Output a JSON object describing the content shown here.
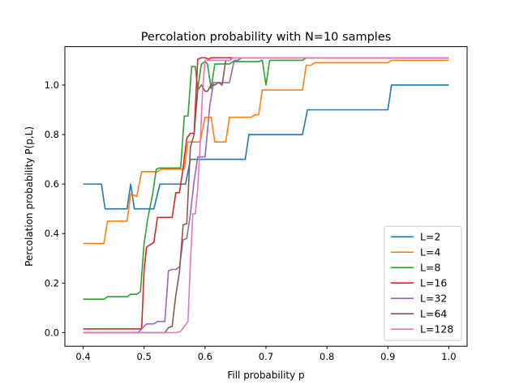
{
  "chart_data": {
    "type": "line",
    "title": "Percolation probability with N=10 samples",
    "xlabel": "Fill probability p",
    "ylabel": "Percolation probability P(p,L)",
    "xlim": [
      0.37,
      1.03
    ],
    "ylim": [
      -0.055,
      1.155
    ],
    "xticks": [
      "0.4",
      "0.5",
      "0.6",
      "0.7",
      "0.8",
      "0.9",
      "1.0"
    ],
    "yticks": [
      "0.0",
      "0.2",
      "0.4",
      "0.6",
      "0.8",
      "1.0"
    ],
    "legend_position": "lower-right",
    "grid": false,
    "series": [
      {
        "name": "L=2",
        "color": "#1f77b4",
        "x": [
          0.4,
          0.43,
          0.436,
          0.472,
          0.478,
          0.484,
          0.516,
          0.526,
          0.568,
          0.576,
          0.666,
          0.672,
          0.76,
          0.768,
          0.9,
          0.906,
          1.0
        ],
        "y": [
          0.6,
          0.6,
          0.5,
          0.5,
          0.6,
          0.5,
          0.5,
          0.6,
          0.6,
          0.7,
          0.7,
          0.8,
          0.8,
          0.9,
          0.9,
          1.0,
          1.0
        ]
      },
      {
        "name": "L=4",
        "color": "#ff7f0e",
        "x": [
          0.4,
          0.434,
          0.44,
          0.472,
          0.478,
          0.488,
          0.496,
          0.522,
          0.528,
          0.566,
          0.572,
          0.592,
          0.6,
          0.61,
          0.616,
          0.634,
          0.64,
          0.676,
          0.682,
          0.688,
          0.694,
          0.76,
          0.766,
          0.774,
          0.78,
          0.9,
          0.906,
          1.0
        ],
        "y": [
          0.36,
          0.36,
          0.45,
          0.45,
          0.56,
          0.55,
          0.65,
          0.65,
          0.66,
          0.66,
          0.77,
          0.77,
          0.87,
          0.87,
          0.77,
          0.77,
          0.87,
          0.87,
          0.88,
          0.88,
          0.98,
          0.98,
          1.08,
          1.08,
          1.09,
          1.09,
          1.1,
          1.1
        ]
      },
      {
        "name": "L=8",
        "color": "#2ca02c",
        "x": [
          0.4,
          0.434,
          0.44,
          0.472,
          0.478,
          0.488,
          0.494,
          0.5,
          0.506,
          0.514,
          0.52,
          0.526,
          0.56,
          0.566,
          0.572,
          0.578,
          0.584,
          0.588,
          0.594,
          0.6,
          0.604,
          0.61,
          0.616,
          0.622,
          0.64,
          0.646,
          0.688,
          0.694,
          0.7,
          0.706,
          0.76,
          0.766,
          1.0
        ],
        "y": [
          0.135,
          0.135,
          0.145,
          0.145,
          0.155,
          0.155,
          0.165,
          0.36,
          0.46,
          0.56,
          0.66,
          0.665,
          0.665,
          0.875,
          0.875,
          1.075,
          1.075,
          0.985,
          1.085,
          1.095,
          1.085,
          0.985,
          1.085,
          1.085,
          1.085,
          1.095,
          1.095,
          1.1,
          1.0,
          1.1,
          1.1,
          1.11,
          1.11
        ]
      },
      {
        "name": "L=16",
        "color": "#d62728",
        "x": [
          0.4,
          0.496,
          0.5,
          0.504,
          0.51,
          0.516,
          0.522,
          0.528,
          0.546,
          0.552,
          0.558,
          0.564,
          0.57,
          0.576,
          0.582,
          0.588,
          0.594,
          0.6,
          0.606,
          0.61,
          0.616,
          0.646,
          0.652,
          0.7,
          1.0
        ],
        "y": [
          0.015,
          0.015,
          0.255,
          0.345,
          0.355,
          0.365,
          0.465,
          0.465,
          0.465,
          0.565,
          0.565,
          0.665,
          0.785,
          0.805,
          0.805,
          1.105,
          1.11,
          1.11,
          1.105,
          1.11,
          1.11,
          1.11,
          1.11,
          1.11,
          1.11
        ]
      },
      {
        "name": "L=32",
        "color": "#9467bd",
        "x": [
          0.4,
          0.49,
          0.496,
          0.504,
          0.51,
          0.516,
          0.522,
          0.528,
          0.534,
          0.54,
          0.546,
          0.552,
          0.558,
          0.564,
          0.57,
          0.576,
          0.582,
          0.588,
          0.594,
          0.6,
          0.608,
          0.614,
          0.62,
          0.626,
          0.632,
          0.64,
          0.648,
          0.654,
          0.66,
          0.666,
          1.0
        ],
        "y": [
          0.0,
          0.0,
          0.015,
          0.035,
          0.035,
          0.035,
          0.045,
          0.045,
          0.045,
          0.25,
          0.255,
          0.255,
          0.265,
          0.375,
          0.38,
          0.48,
          0.61,
          0.71,
          0.71,
          0.71,
          0.92,
          1.01,
          1.01,
          1.01,
          1.01,
          1.01,
          1.1,
          1.1,
          1.11,
          1.11,
          1.11
        ]
      },
      {
        "name": "L=64",
        "color": "#8c564b",
        "x": [
          0.4,
          0.534,
          0.54,
          0.546,
          0.552,
          0.558,
          0.564,
          0.57,
          0.576,
          0.582,
          0.588,
          0.594,
          0.6,
          0.604,
          0.61,
          0.616,
          0.622,
          0.628,
          0.634,
          0.64,
          0.646,
          0.652,
          1.0
        ],
        "y": [
          0.0,
          0.0,
          0.02,
          0.025,
          0.15,
          0.245,
          0.435,
          0.44,
          0.75,
          0.8,
          0.98,
          1.0,
          0.975,
          0.975,
          1.0,
          1.0,
          1.01,
          1.0,
          1.1,
          1.1,
          1.11,
          1.11,
          1.11
        ]
      },
      {
        "name": "L=128",
        "color": "#e377c2",
        "x": [
          0.4,
          0.554,
          0.56,
          0.566,
          0.572,
          0.576,
          0.58,
          0.584,
          0.588,
          0.592,
          0.596,
          0.6,
          0.604,
          0.61,
          0.64,
          0.646,
          1.0
        ],
        "y": [
          0.0,
          0.0,
          0.005,
          0.025,
          0.045,
          0.285,
          0.48,
          0.48,
          0.58,
          0.76,
          0.98,
          1.1,
          1.1,
          1.1,
          1.1,
          1.11,
          1.11
        ]
      }
    ]
  }
}
